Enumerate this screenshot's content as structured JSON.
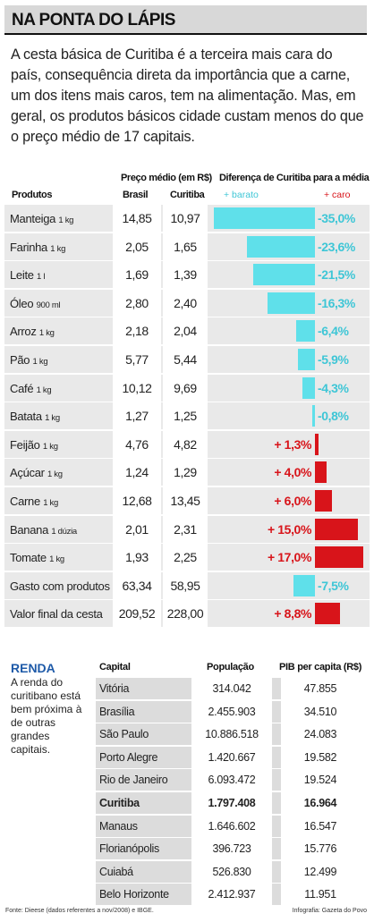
{
  "header": {
    "title": "NA PONTA DO LÁPIS"
  },
  "intro": "A cesta básica de Curitiba é a terceira mais cara do país, consequência direta da importância que a carne, um dos itens mais caros, tem na alimentação. Mas, em geral, os produtos básicos cidade custam menos do que o preço médio de 17 capitais.",
  "colors": {
    "cheaper": "#5fe0ea",
    "pricier": "#d8141a",
    "cheaper_text": "#3ec6d6",
    "renda": "#1e5aa8"
  },
  "chart_data": {
    "type": "table",
    "headers": {
      "produtos": "Produtos",
      "preco_medio": "Preço médio (em R$)",
      "brasil": "Brasil",
      "curitiba": "Curitiba",
      "diferenca": "Diferença de Curitiba para a média",
      "mais_barato": "+ barato",
      "mais_caro": "+ caro"
    },
    "rows": [
      {
        "product": "Manteiga",
        "unit": "1 kg",
        "brasil": "14,85",
        "curitiba": "10,97",
        "diff": -35.0,
        "diff_label": "-35,0%"
      },
      {
        "product": "Farinha",
        "unit": "1 kg",
        "brasil": "2,05",
        "curitiba": "1,65",
        "diff": -23.6,
        "diff_label": "-23,6%"
      },
      {
        "product": "Leite",
        "unit": "1 l",
        "brasil": "1,69",
        "curitiba": "1,39",
        "diff": -21.5,
        "diff_label": "-21,5%"
      },
      {
        "product": "Óleo",
        "unit": "900 ml",
        "brasil": "2,80",
        "curitiba": "2,40",
        "diff": -16.3,
        "diff_label": "-16,3%"
      },
      {
        "product": "Arroz",
        "unit": "1 kg",
        "brasil": "2,18",
        "curitiba": "2,04",
        "diff": -6.4,
        "diff_label": "-6,4%"
      },
      {
        "product": "Pão",
        "unit": "1 kg",
        "brasil": "5,77",
        "curitiba": "5,44",
        "diff": -5.9,
        "diff_label": "-5,9%"
      },
      {
        "product": "Café",
        "unit": "1 kg",
        "brasil": "10,12",
        "curitiba": "9,69",
        "diff": -4.3,
        "diff_label": "-4,3%"
      },
      {
        "product": "Batata",
        "unit": "1 kg",
        "brasil": "1,27",
        "curitiba": "1,25",
        "diff": -0.8,
        "diff_label": "-0,8%"
      },
      {
        "product": "Feijão",
        "unit": "1 kg",
        "brasil": "4,76",
        "curitiba": "4,82",
        "diff": 1.3,
        "diff_label": "+ 1,3%"
      },
      {
        "product": "Açúcar",
        "unit": "1 kg",
        "brasil": "1,24",
        "curitiba": "1,29",
        "diff": 4.0,
        "diff_label": "+ 4,0%"
      },
      {
        "product": "Carne",
        "unit": "1 kg",
        "brasil": "12,68",
        "curitiba": "13,45",
        "diff": 6.0,
        "diff_label": "+ 6,0%"
      },
      {
        "product": "Banana",
        "unit": "1 dúzia",
        "brasil": "2,01",
        "curitiba": "2,31",
        "diff": 15.0,
        "diff_label": "+ 15,0%"
      },
      {
        "product": "Tomate",
        "unit": "1 kg",
        "brasil": "1,93",
        "curitiba": "2,25",
        "diff": 17.0,
        "diff_label": "+ 17,0%"
      },
      {
        "product": "Gasto com produtos",
        "unit": "",
        "brasil": "63,34",
        "curitiba": "58,95",
        "diff": -7.5,
        "diff_label": "-7,5%"
      },
      {
        "product": "Valor final da cesta",
        "unit": "",
        "brasil": "209,52",
        "curitiba": "228,00",
        "diff": 8.8,
        "diff_label": "+ 8,8%"
      }
    ]
  },
  "renda": {
    "title": "RENDA",
    "text": "A renda do curitibano está bem próxima à de outras grandes capitais.",
    "headers": {
      "capital": "Capital",
      "populacao": "População",
      "pib": "PIB per capita (R$)"
    },
    "rows": [
      {
        "capital": "Vitória",
        "populacao": "314.042",
        "pib": "47.855",
        "bold": false
      },
      {
        "capital": "Brasília",
        "populacao": "2.455.903",
        "pib": "34.510",
        "bold": false
      },
      {
        "capital": "São Paulo",
        "populacao": "10.886.518",
        "pib": "24.083",
        "bold": false
      },
      {
        "capital": "Porto Alegre",
        "populacao": "1.420.667",
        "pib": "19.582",
        "bold": false
      },
      {
        "capital": "Rio de Janeiro",
        "populacao": "6.093.472",
        "pib": "19.524",
        "bold": false
      },
      {
        "capital": "Curitiba",
        "populacao": "1.797.408",
        "pib": "16.964",
        "bold": true
      },
      {
        "capital": "Manaus",
        "populacao": "1.646.602",
        "pib": "16.547",
        "bold": false
      },
      {
        "capital": "Florianópolis",
        "populacao": "396.723",
        "pib": "15.776",
        "bold": false
      },
      {
        "capital": "Cuiabá",
        "populacao": "526.830",
        "pib": "12.499",
        "bold": false
      },
      {
        "capital": "Belo Horizonte",
        "populacao": "2.412.937",
        "pib": "11.951",
        "bold": false
      }
    ]
  },
  "footer": {
    "source": "Fonte: Dieese (dados referentes a nov/2008) e IBGE.",
    "credit": "Infografia: Gazeta do Povo"
  }
}
